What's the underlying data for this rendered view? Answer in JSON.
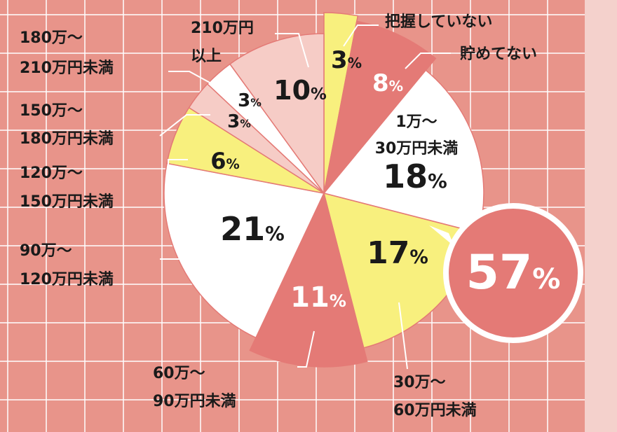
{
  "chart_data": {
    "type": "pie",
    "slices": [
      {
        "label": "把握していない",
        "value": 3,
        "color": "#f8f07e"
      },
      {
        "label": "貯めてない",
        "value": 8,
        "color": "#e47a76"
      },
      {
        "label": "1万〜\n30万円未満",
        "value": 18,
        "color": "#ffffff"
      },
      {
        "label": "30万〜\n60万円未満",
        "value": 17,
        "color": "#f8f07e"
      },
      {
        "label": "60万〜\n90万円未満",
        "value": 11,
        "color": "#e47a76"
      },
      {
        "label": "90万〜\n120万円未満",
        "value": 21,
        "color": "#ffffff"
      },
      {
        "label": "120万〜\n150万円未満",
        "value": 6,
        "color": "#f8f07e"
      },
      {
        "label": "150万〜\n180万円未満",
        "value": 3,
        "color": "#f6ccc6"
      },
      {
        "label": "180万〜\n210万円未満",
        "value": 3,
        "color": "#ffffff"
      },
      {
        "label": "210万円\n以上",
        "value": 10,
        "color": "#f6ccc6"
      }
    ],
    "highlight": {
      "value": "57",
      "unit": "%",
      "color": "#e47a76"
    },
    "unit": "%"
  },
  "colors": {
    "background": "#e8948a",
    "grid": "#ffffff"
  }
}
